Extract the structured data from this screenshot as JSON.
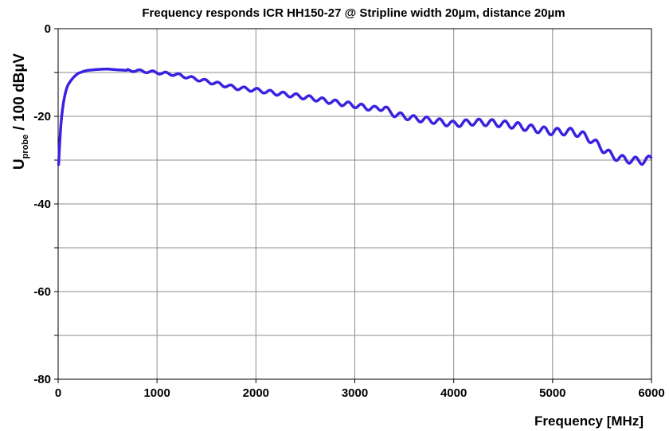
{
  "chart_data": {
    "type": "line",
    "title": "Frequency responds ICR HH150-27 @ Stripline width 20µm, distance 20µm",
    "xlabel": "Frequency [MHz]",
    "ylabel": {
      "main": "U",
      "sub": "probe",
      "rest": " / 100 dBµV"
    },
    "xlim": [
      0,
      6000
    ],
    "ylim": [
      -80,
      0
    ],
    "x_ticks": [
      "0",
      "1000",
      "2000",
      "3000",
      "4000",
      "5000",
      "6000"
    ],
    "y_ticks": [
      "0",
      "-20",
      "-40",
      "-60",
      "-80"
    ],
    "grid": true,
    "line_color": "#3a22e0",
    "grid_color": "#8c8c8c",
    "series": [
      {
        "x": [
          5,
          20,
          40,
          60,
          80,
          100,
          130,
          160,
          200,
          250,
          300,
          400,
          500,
          600,
          700,
          800,
          900,
          1000,
          1200,
          1400,
          1600,
          1800,
          2000,
          2200,
          2400,
          2600,
          2800,
          3000,
          3200,
          3300,
          3350,
          3400,
          3500,
          3600,
          3800,
          4000,
          4200,
          4400,
          4600,
          4800,
          5000,
          5200,
          5300,
          5400,
          5500,
          5600,
          5700,
          5800,
          5900,
          6000
        ],
        "y": [
          -31,
          -24,
          -19,
          -16,
          -14,
          -12.8,
          -11.8,
          -11,
          -10.2,
          -9.8,
          -9.5,
          -9.3,
          -9.2,
          -9.4,
          -9.5,
          -9.6,
          -9.8,
          -10,
          -10.5,
          -11.5,
          -12.5,
          -13.5,
          -14,
          -14.7,
          -15.3,
          -16,
          -16.8,
          -17.5,
          -18.3,
          -18,
          -19,
          -19.5,
          -20,
          -20.5,
          -21,
          -21.8,
          -21.3,
          -21.5,
          -22,
          -22.8,
          -23.5,
          -23.5,
          -24.2,
          -25.5,
          -27.3,
          -29,
          -29.7,
          -30,
          -30.2,
          -29.7
        ]
      }
    ]
  }
}
